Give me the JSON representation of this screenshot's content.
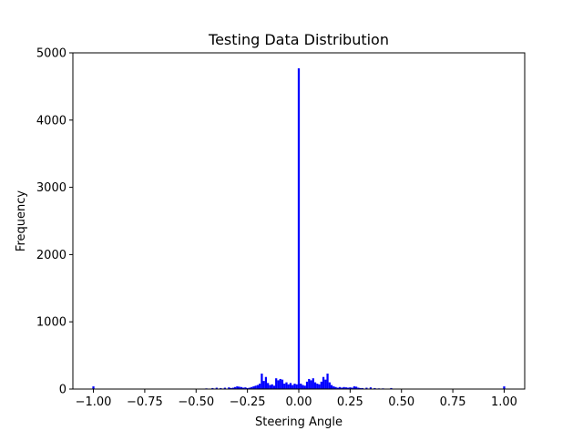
{
  "chart_data": {
    "type": "bar",
    "title": "Testing Data Distribution",
    "xlabel": "Steering Angle",
    "ylabel": "Frequency",
    "xlim": [
      -1.1,
      1.1
    ],
    "ylim": [
      0,
      5000
    ],
    "grid": false,
    "bar_color": "#0000ff",
    "bin_width": 0.01,
    "xticks": [
      -1.0,
      -0.75,
      -0.5,
      -0.25,
      0.0,
      0.25,
      0.5,
      0.75,
      1.0
    ],
    "xtick_labels": [
      "−1.00",
      "−0.75",
      "−0.50",
      "−0.25",
      "0.00",
      "0.25",
      "0.50",
      "0.75",
      "1.00"
    ],
    "yticks": [
      0,
      1000,
      2000,
      3000,
      4000,
      5000
    ],
    "ytick_labels": [
      "0",
      "1000",
      "2000",
      "3000",
      "4000",
      "5000"
    ],
    "x": [
      -1.0,
      -0.45,
      -0.42,
      -0.4,
      -0.38,
      -0.36,
      -0.34,
      -0.33,
      -0.32,
      -0.31,
      -0.3,
      -0.29,
      -0.28,
      -0.27,
      -0.26,
      -0.25,
      -0.24,
      -0.23,
      -0.22,
      -0.21,
      -0.2,
      -0.19,
      -0.18,
      -0.17,
      -0.16,
      -0.15,
      -0.14,
      -0.13,
      -0.12,
      -0.11,
      -0.1,
      -0.09,
      -0.08,
      -0.07,
      -0.06,
      -0.05,
      -0.04,
      -0.03,
      -0.02,
      -0.01,
      0.0,
      0.01,
      0.02,
      0.03,
      0.04,
      0.05,
      0.06,
      0.07,
      0.08,
      0.09,
      0.1,
      0.11,
      0.12,
      0.13,
      0.14,
      0.15,
      0.16,
      0.17,
      0.18,
      0.19,
      0.2,
      0.21,
      0.22,
      0.23,
      0.24,
      0.25,
      0.26,
      0.27,
      0.28,
      0.29,
      0.3,
      0.31,
      0.33,
      0.35,
      0.37,
      0.39,
      0.41,
      0.45,
      1.0
    ],
    "values": [
      40,
      10,
      15,
      20,
      15,
      20,
      25,
      15,
      20,
      30,
      40,
      35,
      30,
      20,
      25,
      15,
      20,
      30,
      40,
      50,
      60,
      80,
      230,
      120,
      180,
      90,
      60,
      70,
      50,
      160,
      130,
      150,
      140,
      80,
      100,
      70,
      90,
      60,
      80,
      70,
      4770,
      80,
      60,
      50,
      110,
      150,
      130,
      160,
      100,
      80,
      70,
      110,
      180,
      140,
      230,
      100,
      60,
      40,
      30,
      20,
      30,
      20,
      30,
      25,
      20,
      25,
      20,
      40,
      35,
      20,
      15,
      15,
      20,
      25,
      15,
      10,
      10,
      15,
      40
    ]
  }
}
